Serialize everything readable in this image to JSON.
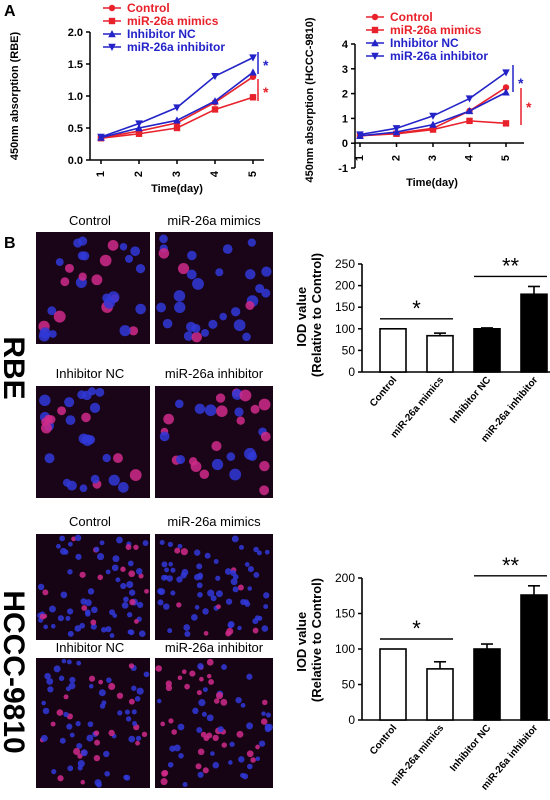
{
  "panel_labels": {
    "a": "A",
    "b": "B"
  },
  "colors": {
    "control": "#e8212b",
    "mimics": "#e8212b",
    "inhibitor_nc": "#2323c8",
    "inhibitor": "#2323c8",
    "star_blue": "#2323c8",
    "star_red": "#e8212b",
    "bar_open": "#ffffff",
    "bar_black": "#000000"
  },
  "legend": [
    "Control",
    "miR-26a mimics",
    "Inhibitor NC",
    "miR-26a inhibitor"
  ],
  "sig": {
    "single": "*",
    "double": "**"
  },
  "cells": {
    "rbe": {
      "row_label": "RBE",
      "labels": [
        "Control",
        "miR-26a mimics",
        "Inhibitor NC",
        "miR-26a inhibitor"
      ]
    },
    "hccc": {
      "row_label": "HCCC-9810",
      "labels": [
        "Control",
        "miR-26a mimics",
        "Inhibitor NC",
        "miR-26a inhibitor"
      ]
    }
  },
  "chart_data": [
    {
      "type": "line",
      "xlabel": "Time(day)",
      "ylabel": "450nm absorption (RBE)",
      "x": [
        1,
        2,
        3,
        4,
        5
      ],
      "xlim": [
        1,
        5
      ],
      "ylim": [
        0,
        2.0
      ],
      "yticks": [
        0.0,
        0.5,
        1.0,
        1.5,
        2.0
      ],
      "ytick_labels": [
        "0.0",
        "0.5",
        "1.0",
        "1.5",
        "2.0"
      ],
      "series": [
        {
          "name": "Control",
          "values": [
            0.35,
            0.45,
            0.58,
            0.9,
            1.3
          ]
        },
        {
          "name": "miR-26a mimics",
          "values": [
            0.34,
            0.41,
            0.5,
            0.79,
            0.98
          ]
        },
        {
          "name": "Inhibitor NC",
          "values": [
            0.35,
            0.5,
            0.62,
            0.92,
            1.37
          ]
        },
        {
          "name": "miR-26a inhibitor",
          "values": [
            0.36,
            0.57,
            0.82,
            1.31,
            1.6
          ]
        }
      ]
    },
    {
      "type": "line",
      "xlabel": "Time(day)",
      "ylabel": "450nm absorption (HCCC-9810)",
      "x": [
        1,
        2,
        3,
        4,
        5
      ],
      "xlim": [
        1,
        5
      ],
      "ylim": [
        -1,
        4
      ],
      "yticks": [
        -1,
        0,
        1,
        2,
        3,
        4
      ],
      "ytick_labels": [
        "-1",
        "0",
        "1",
        "2",
        "3",
        "4"
      ],
      "series": [
        {
          "name": "Control",
          "values": [
            0.3,
            0.4,
            0.6,
            1.3,
            2.25
          ]
        },
        {
          "name": "miR-26a mimics",
          "values": [
            0.3,
            0.38,
            0.55,
            0.9,
            0.8
          ]
        },
        {
          "name": "Inhibitor NC",
          "values": [
            0.3,
            0.45,
            0.75,
            1.3,
            2.05
          ]
        },
        {
          "name": "miR-26a inhibitor",
          "values": [
            0.35,
            0.6,
            1.1,
            1.8,
            2.85
          ]
        }
      ]
    },
    {
      "type": "bar",
      "ylabel": "IOD value (Relative to Control)",
      "categories": [
        "Control",
        "miR-26a mimics",
        "Inhibitor NC",
        "miR-26a inhibitor"
      ],
      "values": [
        100,
        84,
        100,
        180
      ],
      "errors": [
        0,
        6,
        2,
        18
      ],
      "fills": [
        "open",
        "open",
        "black",
        "black"
      ],
      "ylim": [
        0,
        250
      ],
      "yticks": [
        0,
        50,
        100,
        150,
        200,
        250
      ]
    },
    {
      "type": "bar",
      "ylabel": "IOD value (Relative to Control)",
      "categories": [
        "Control",
        "miR-26a mimics",
        "Inhibitor NC",
        "miR-26a inhibitor"
      ],
      "values": [
        100,
        72,
        100,
        176
      ],
      "errors": [
        0,
        10,
        7,
        13
      ],
      "fills": [
        "open",
        "open",
        "black",
        "black"
      ],
      "ylim": [
        0,
        200
      ],
      "yticks": [
        0,
        50,
        100,
        150,
        200
      ]
    }
  ]
}
